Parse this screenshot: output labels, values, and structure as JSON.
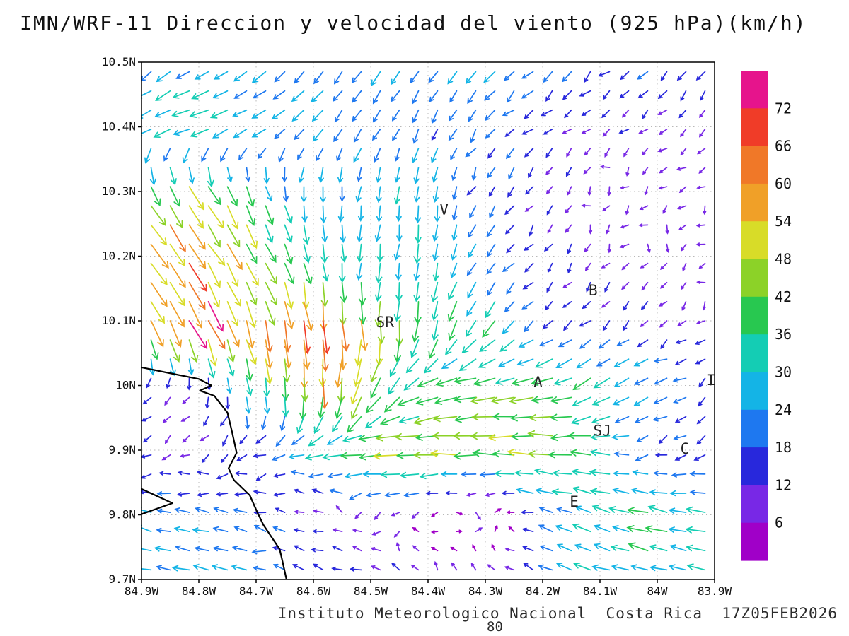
{
  "title": "IMN/WRF-11 Direccion y velocidad del viento (925 hPa)(km/h)",
  "footer": {
    "text": "Instituto Meteorologico Nacional  Costa Rica  17Z05FEB2026",
    "note": "80"
  },
  "chart_data": {
    "type": "vector-field",
    "title": "IMN/WRF-11 Direccion y velocidad del viento (925 hPa)(km/h)",
    "units": "km/h",
    "level": "925 hPa",
    "lon_range": [
      -84.9,
      -83.9
    ],
    "lat_range": [
      9.7,
      10.5
    ],
    "x_tick_labels": [
      "84.9W",
      "84.8W",
      "84.7W",
      "84.6W",
      "84.5W",
      "84.4W",
      "84.3W",
      "84.2W",
      "84.1W",
      "84W",
      "83.9W"
    ],
    "y_tick_labels": [
      "10.5N",
      "10.4N",
      "10.3N",
      "10.2N",
      "10.1N",
      "10N",
      "9.9N",
      "9.8N",
      "9.7N"
    ],
    "grid_on": true,
    "colorbar": {
      "levels": [
        6,
        12,
        18,
        24,
        30,
        36,
        42,
        48,
        54,
        60,
        66,
        72
      ],
      "colors_low_to_high": [
        "#A000C8",
        "#7828E6",
        "#2828DC",
        "#1E78F0",
        "#14B4E6",
        "#14CDB4",
        "#28C850",
        "#8CD228",
        "#D8DC28",
        "#F0A028",
        "#F07828",
        "#F03C28",
        "#E6148C"
      ]
    },
    "stations": [
      {
        "label": "V",
        "lon": -84.372,
        "lat": 10.272
      },
      {
        "label": "B",
        "lon": -84.112,
        "lat": 10.147
      },
      {
        "label": "SR",
        "lon": -84.475,
        "lat": 10.098
      },
      {
        "label": "A",
        "lon": -84.208,
        "lat": 10.005
      },
      {
        "label": "SJ",
        "lon": -84.096,
        "lat": 9.93
      },
      {
        "label": "C",
        "lon": -83.952,
        "lat": 9.902
      },
      {
        "label": "E",
        "lon": -84.145,
        "lat": 9.82
      },
      {
        "label": "I",
        "lon": -83.906,
        "lat": 10.008
      }
    ],
    "coastline": [
      [
        [
          -84.9,
          10.028
        ],
        [
          -84.845,
          10.018
        ],
        [
          -84.8,
          10.01
        ],
        [
          -84.778,
          10.0
        ],
        [
          -84.798,
          9.992
        ],
        [
          -84.773,
          9.984
        ],
        [
          -84.75,
          9.958
        ],
        [
          -84.742,
          9.928
        ],
        [
          -84.734,
          9.896
        ],
        [
          -84.748,
          9.872
        ],
        [
          -84.739,
          9.854
        ],
        [
          -84.711,
          9.83
        ],
        [
          -84.699,
          9.806
        ],
        [
          -84.687,
          9.784
        ],
        [
          -84.659,
          9.747
        ],
        [
          -84.654,
          9.728
        ],
        [
          -84.647,
          9.7
        ]
      ],
      [
        [
          -84.9,
          9.84
        ],
        [
          -84.846,
          9.818
        ],
        [
          -84.9,
          9.801
        ]
      ]
    ],
    "wind_grid": {
      "comment": "u=eastward, v=northward wind components in km/h on a 0.1 deg grid; rows north-to-south (lat 10.5 to 9.7), cols west-to-east (lon -84.9 to -83.9)",
      "lons": [
        -84.9,
        -84.8,
        -84.7,
        -84.6,
        -84.5,
        -84.4,
        -84.3,
        -84.2,
        -84.1,
        -84.0,
        -83.9
      ],
      "lats": [
        10.5,
        10.4,
        10.3,
        10.2,
        10.1,
        10.0,
        9.9,
        9.8,
        9.7
      ],
      "uv": [
        [
          [
            -20,
            -16
          ],
          [
            -22,
            -15
          ],
          [
            -20,
            -17
          ],
          [
            -17,
            -19
          ],
          [
            -15,
            -20
          ],
          [
            -13,
            -20
          ],
          [
            -15,
            -17
          ],
          [
            -15,
            -13
          ],
          [
            -14,
            -12
          ],
          [
            -13,
            -11
          ],
          [
            -12,
            -11
          ]
        ],
        [
          [
            -28,
            -12
          ],
          [
            -32,
            -10
          ],
          [
            -24,
            -12
          ],
          [
            -15,
            -17
          ],
          [
            -11,
            -19
          ],
          [
            -9,
            -19
          ],
          [
            -13,
            -15
          ],
          [
            -11,
            -10
          ],
          [
            -9,
            -8
          ],
          [
            -8,
            -7
          ],
          [
            -7,
            -8
          ]
        ],
        [
          [
            26,
            -40
          ],
          [
            30,
            -44
          ],
          [
            14,
            -30
          ],
          [
            2,
            -26
          ],
          [
            -4,
            -26
          ],
          [
            0,
            -28
          ],
          [
            -10,
            -16
          ],
          [
            -8,
            -9
          ],
          [
            -6,
            -6
          ],
          [
            -7,
            -5
          ],
          [
            -6,
            -5
          ]
        ],
        [
          [
            30,
            -48
          ],
          [
            34,
            -50
          ],
          [
            20,
            -40
          ],
          [
            6,
            -34
          ],
          [
            -4,
            -30
          ],
          [
            -4,
            -30
          ],
          [
            -14,
            -20
          ],
          [
            -8,
            -10
          ],
          [
            -6,
            -8
          ],
          [
            -5,
            -8
          ],
          [
            -5,
            -6
          ]
        ],
        [
          [
            20,
            -44
          ],
          [
            30,
            -62
          ],
          [
            16,
            -54
          ],
          [
            6,
            -64
          ],
          [
            0,
            -50
          ],
          [
            -6,
            -40
          ],
          [
            -20,
            -30
          ],
          [
            -12,
            -12
          ],
          [
            -12,
            -10
          ],
          [
            -8,
            -8
          ],
          [
            -8,
            -6
          ]
        ],
        [
          [
            -8,
            -8
          ],
          [
            -6,
            -10
          ],
          [
            6,
            -30
          ],
          [
            0,
            -54
          ],
          [
            -16,
            -44
          ],
          [
            -34,
            -12
          ],
          [
            -40,
            -6
          ],
          [
            -40,
            -8
          ],
          [
            -30,
            -20
          ],
          [
            -24,
            -12
          ],
          [
            -11,
            -8
          ]
        ],
        [
          [
            -10,
            -6
          ],
          [
            -8,
            -6
          ],
          [
            -12,
            -9
          ],
          [
            -25,
            -5
          ],
          [
            -45,
            -3
          ],
          [
            -48,
            -1
          ],
          [
            -48,
            0
          ],
          [
            -45,
            2
          ],
          [
            -36,
            3
          ],
          [
            -13,
            -5
          ],
          [
            -16,
            -7
          ]
        ],
        [
          [
            -22,
            7
          ],
          [
            -22,
            5
          ],
          [
            -18,
            5
          ],
          [
            -10,
            3
          ],
          [
            -8,
            -3
          ],
          [
            -6,
            -5
          ],
          [
            14,
            -3
          ],
          [
            -20,
            7
          ],
          [
            -30,
            9
          ],
          [
            -36,
            9
          ],
          [
            -30,
            6
          ]
        ],
        [
          [
            -25,
            5
          ],
          [
            -25,
            5
          ],
          [
            -22,
            6
          ],
          [
            -18,
            5
          ],
          [
            -12,
            8
          ],
          [
            -5,
            11
          ],
          [
            -6,
            10
          ],
          [
            -18,
            8
          ],
          [
            -27,
            8
          ],
          [
            -30,
            8
          ],
          [
            -28,
            6
          ]
        ]
      ]
    }
  }
}
